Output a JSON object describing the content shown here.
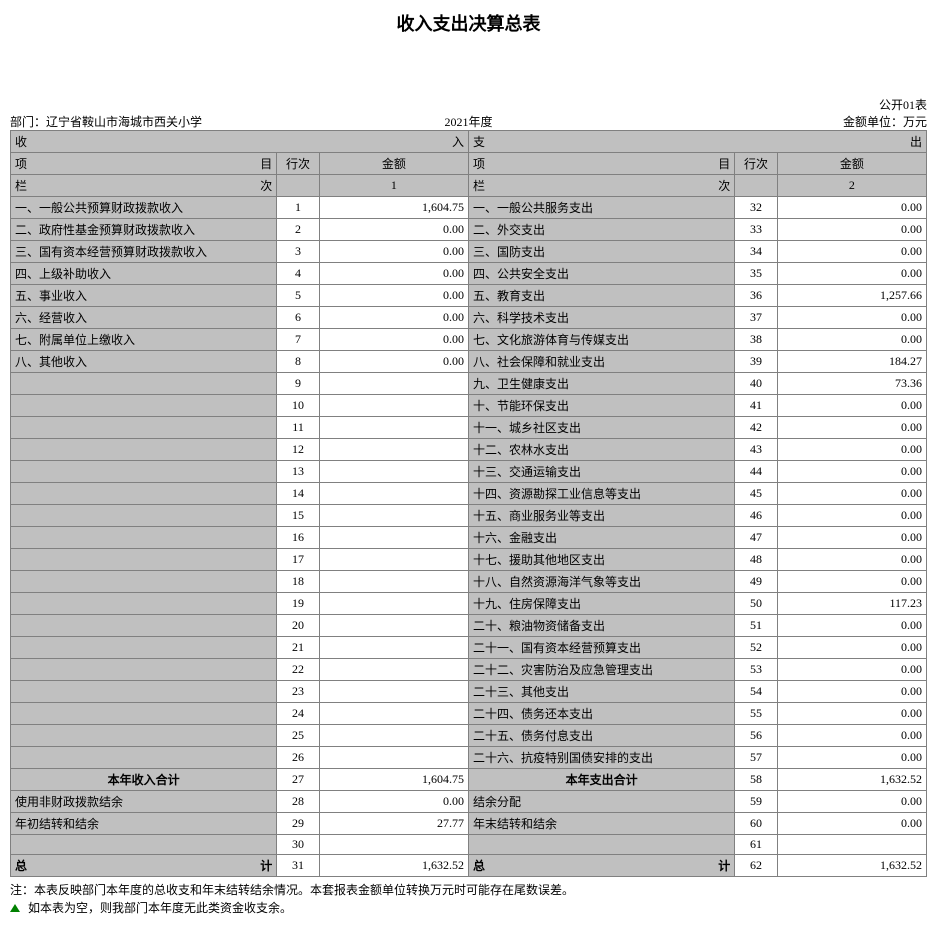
{
  "title": "收入支出决算总表",
  "form_no": "公开01表",
  "dept_label": "部门：",
  "dept": "辽宁省鞍山市海城市西关小学",
  "year": "2021年度",
  "unit": "金额单位：万元",
  "income_header": "收",
  "income_header_r": "入",
  "expense_header": "支",
  "expense_header_r": "出",
  "col_item": "项",
  "col_item_r": "目",
  "col_row": "行次",
  "col_amount": "金额",
  "col_lan": "栏",
  "col_lan_r": "次",
  "col_num_1": "1",
  "col_num_2": "2",
  "income_rows": [
    {
      "label": "一、一般公共预算财政拨款收入",
      "row": "1",
      "amt": "1,604.75"
    },
    {
      "label": "二、政府性基金预算财政拨款收入",
      "row": "2",
      "amt": "0.00"
    },
    {
      "label": "三、国有资本经营预算财政拨款收入",
      "row": "3",
      "amt": "0.00"
    },
    {
      "label": "四、上级补助收入",
      "row": "4",
      "amt": "0.00"
    },
    {
      "label": "五、事业收入",
      "row": "5",
      "amt": "0.00"
    },
    {
      "label": "六、经营收入",
      "row": "6",
      "amt": "0.00"
    },
    {
      "label": "七、附属单位上缴收入",
      "row": "7",
      "amt": "0.00"
    },
    {
      "label": "八、其他收入",
      "row": "8",
      "amt": "0.00"
    },
    {
      "label": "",
      "row": "9",
      "amt": ""
    },
    {
      "label": "",
      "row": "10",
      "amt": ""
    },
    {
      "label": "",
      "row": "11",
      "amt": ""
    },
    {
      "label": "",
      "row": "12",
      "amt": ""
    },
    {
      "label": "",
      "row": "13",
      "amt": ""
    },
    {
      "label": "",
      "row": "14",
      "amt": ""
    },
    {
      "label": "",
      "row": "15",
      "amt": ""
    },
    {
      "label": "",
      "row": "16",
      "amt": ""
    },
    {
      "label": "",
      "row": "17",
      "amt": ""
    },
    {
      "label": "",
      "row": "18",
      "amt": ""
    },
    {
      "label": "",
      "row": "19",
      "amt": ""
    },
    {
      "label": "",
      "row": "20",
      "amt": ""
    },
    {
      "label": "",
      "row": "21",
      "amt": ""
    },
    {
      "label": "",
      "row": "22",
      "amt": ""
    },
    {
      "label": "",
      "row": "23",
      "amt": ""
    },
    {
      "label": "",
      "row": "24",
      "amt": ""
    },
    {
      "label": "",
      "row": "25",
      "amt": ""
    },
    {
      "label": "",
      "row": "26",
      "amt": ""
    }
  ],
  "expense_rows": [
    {
      "label": "一、一般公共服务支出",
      "row": "32",
      "amt": "0.00"
    },
    {
      "label": "二、外交支出",
      "row": "33",
      "amt": "0.00"
    },
    {
      "label": "三、国防支出",
      "row": "34",
      "amt": "0.00"
    },
    {
      "label": "四、公共安全支出",
      "row": "35",
      "amt": "0.00"
    },
    {
      "label": "五、教育支出",
      "row": "36",
      "amt": "1,257.66"
    },
    {
      "label": "六、科学技术支出",
      "row": "37",
      "amt": "0.00"
    },
    {
      "label": "七、文化旅游体育与传媒支出",
      "row": "38",
      "amt": "0.00"
    },
    {
      "label": "八、社会保障和就业支出",
      "row": "39",
      "amt": "184.27"
    },
    {
      "label": "九、卫生健康支出",
      "row": "40",
      "amt": "73.36"
    },
    {
      "label": "十、节能环保支出",
      "row": "41",
      "amt": "0.00"
    },
    {
      "label": "十一、城乡社区支出",
      "row": "42",
      "amt": "0.00"
    },
    {
      "label": "十二、农林水支出",
      "row": "43",
      "amt": "0.00"
    },
    {
      "label": "十三、交通运输支出",
      "row": "44",
      "amt": "0.00"
    },
    {
      "label": "十四、资源勘探工业信息等支出",
      "row": "45",
      "amt": "0.00"
    },
    {
      "label": "十五、商业服务业等支出",
      "row": "46",
      "amt": "0.00"
    },
    {
      "label": "十六、金融支出",
      "row": "47",
      "amt": "0.00"
    },
    {
      "label": "十七、援助其他地区支出",
      "row": "48",
      "amt": "0.00"
    },
    {
      "label": "十八、自然资源海洋气象等支出",
      "row": "49",
      "amt": "0.00"
    },
    {
      "label": "十九、住房保障支出",
      "row": "50",
      "amt": "117.23"
    },
    {
      "label": "二十、粮油物资储备支出",
      "row": "51",
      "amt": "0.00"
    },
    {
      "label": "二十一、国有资本经营预算支出",
      "row": "52",
      "amt": "0.00"
    },
    {
      "label": "二十二、灾害防治及应急管理支出",
      "row": "53",
      "amt": "0.00"
    },
    {
      "label": "二十三、其他支出",
      "row": "54",
      "amt": "0.00"
    },
    {
      "label": "二十四、债务还本支出",
      "row": "55",
      "amt": "0.00"
    },
    {
      "label": "二十五、债务付息支出",
      "row": "56",
      "amt": "0.00"
    },
    {
      "label": "二十六、抗疫特别国债安排的支出",
      "row": "57",
      "amt": "0.00"
    }
  ],
  "income_total_label": "本年收入合计",
  "income_total_row": "27",
  "income_total_amt": "1,604.75",
  "expense_total_label": "本年支出合计",
  "expense_total_row": "58",
  "expense_total_amt": "1,632.52",
  "extra_rows": [
    {
      "il": "使用非财政拨款结余",
      "ir": "28",
      "ia": "0.00",
      "el": "结余分配",
      "er": "59",
      "ea": "0.00"
    },
    {
      "il": "年初结转和结余",
      "ir": "29",
      "ia": "27.77",
      "el": "年末结转和结余",
      "er": "60",
      "ea": "0.00"
    },
    {
      "il": "",
      "ir": "30",
      "ia": "",
      "el": "",
      "er": "61",
      "ea": ""
    }
  ],
  "grand_income_label_l": "总",
  "grand_income_label_r": "计",
  "grand_income_row": "31",
  "grand_income_amt": "1,632.52",
  "grand_expense_label_l": "总",
  "grand_expense_label_r": "计",
  "grand_expense_row": "62",
  "grand_expense_amt": "1,632.52",
  "note1": "注：本表反映部门本年度的总收支和年末结转结余情况。本套报表金额单位转换万元时可能存在尾数误差。",
  "note2": "如本表为空，则我部门本年度无此类资金收支余。",
  "colors": {
    "gray": "#c0c0c0",
    "border": "#808080",
    "bg": "#ffffff",
    "text": "#000000",
    "triangle": "#008000"
  },
  "col_widths": {
    "item": 250,
    "row": 40,
    "amount": 140
  }
}
